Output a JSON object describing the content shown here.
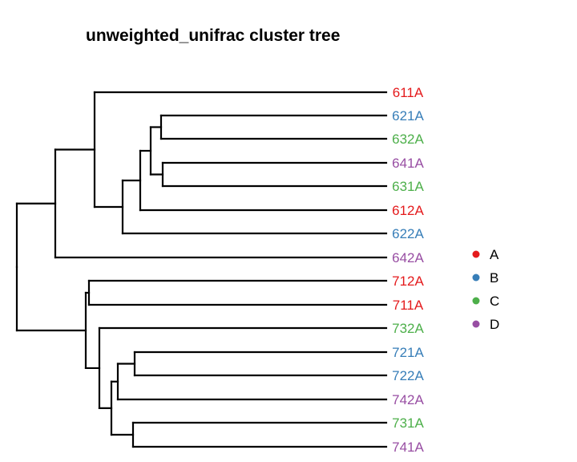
{
  "title": "unweighted_unifrac cluster tree",
  "groups": {
    "A": "#e41a1c",
    "B": "#377eb8",
    "C": "#4daf4a",
    "D": "#984ea3"
  },
  "legend": [
    "A",
    "B",
    "C",
    "D"
  ],
  "leaves": [
    {
      "label": "611A",
      "group": "A"
    },
    {
      "label": "621A",
      "group": "B"
    },
    {
      "label": "632A",
      "group": "C"
    },
    {
      "label": "641A",
      "group": "D"
    },
    {
      "label": "631A",
      "group": "C"
    },
    {
      "label": "612A",
      "group": "A"
    },
    {
      "label": "622A",
      "group": "B"
    },
    {
      "label": "642A",
      "group": "D"
    },
    {
      "label": "712A",
      "group": "A"
    },
    {
      "label": "711A",
      "group": "A"
    },
    {
      "label": "732A",
      "group": "C"
    },
    {
      "label": "721A",
      "group": "B"
    },
    {
      "label": "722A",
      "group": "B"
    },
    {
      "label": "742A",
      "group": "D"
    },
    {
      "label": "731A",
      "group": "C"
    },
    {
      "label": "741A",
      "group": "D"
    }
  ]
}
